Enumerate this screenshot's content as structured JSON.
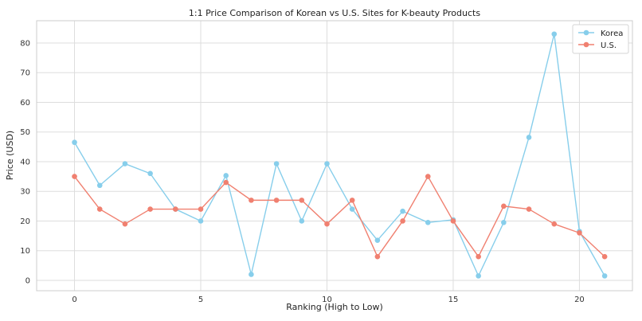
{
  "chart_data": {
    "type": "line",
    "title": "1:1 Price Comparison of Korean vs U.S. Sites for K-beauty Products",
    "xlabel": "Ranking (High to Low)",
    "ylabel": "Price (USD)",
    "x": [
      0,
      1,
      2,
      3,
      4,
      5,
      6,
      7,
      8,
      9,
      10,
      11,
      12,
      13,
      14,
      15,
      16,
      17,
      18,
      19,
      20,
      21
    ],
    "xlim": [
      -1.5,
      22.1
    ],
    "ylim": [
      -3.5,
      87.5
    ],
    "xticks": [
      0,
      5,
      10,
      15,
      20
    ],
    "yticks": [
      0,
      10,
      20,
      30,
      40,
      50,
      60,
      70,
      80
    ],
    "grid": true,
    "legend_position": "top-right",
    "series": [
      {
        "name": "Korea",
        "color": "#87CEEB",
        "values": [
          46.5,
          32,
          39.3,
          36,
          24,
          20,
          35.3,
          2,
          39.3,
          20,
          39.3,
          24,
          13.5,
          23.3,
          19.5,
          20.4,
          1.5,
          19.5,
          48.2,
          83,
          16.5,
          1.5
        ]
      },
      {
        "name": "U.S.",
        "color": "#F08070",
        "values": [
          35,
          24,
          19,
          24,
          24,
          24,
          33,
          27,
          27,
          27,
          19,
          27,
          8,
          20,
          35,
          20,
          8,
          25,
          24,
          19,
          16,
          8
        ]
      }
    ]
  }
}
